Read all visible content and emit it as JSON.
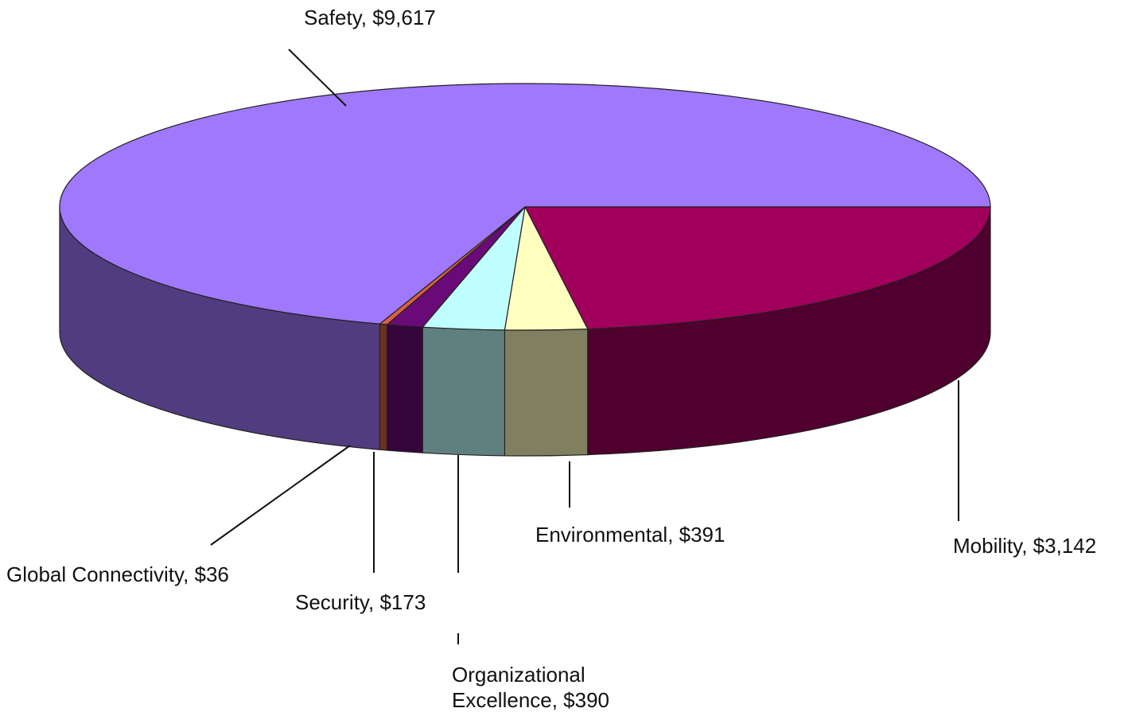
{
  "chart_data": {
    "type": "pie",
    "value_labels": [
      "Mobility, $3,142",
      "Environmental, $391",
      "Organizational Excellence, $390",
      "Security, $173",
      "Global Connectivity, $36",
      "Safety, $9,617"
    ],
    "values": [
      3142,
      391,
      390,
      173,
      36,
      9617
    ],
    "colors": [
      "#a0005c",
      "#ffffc0",
      "#c0ffff",
      "#6a0a78",
      "#d86040",
      "#a078fc"
    ]
  }
}
